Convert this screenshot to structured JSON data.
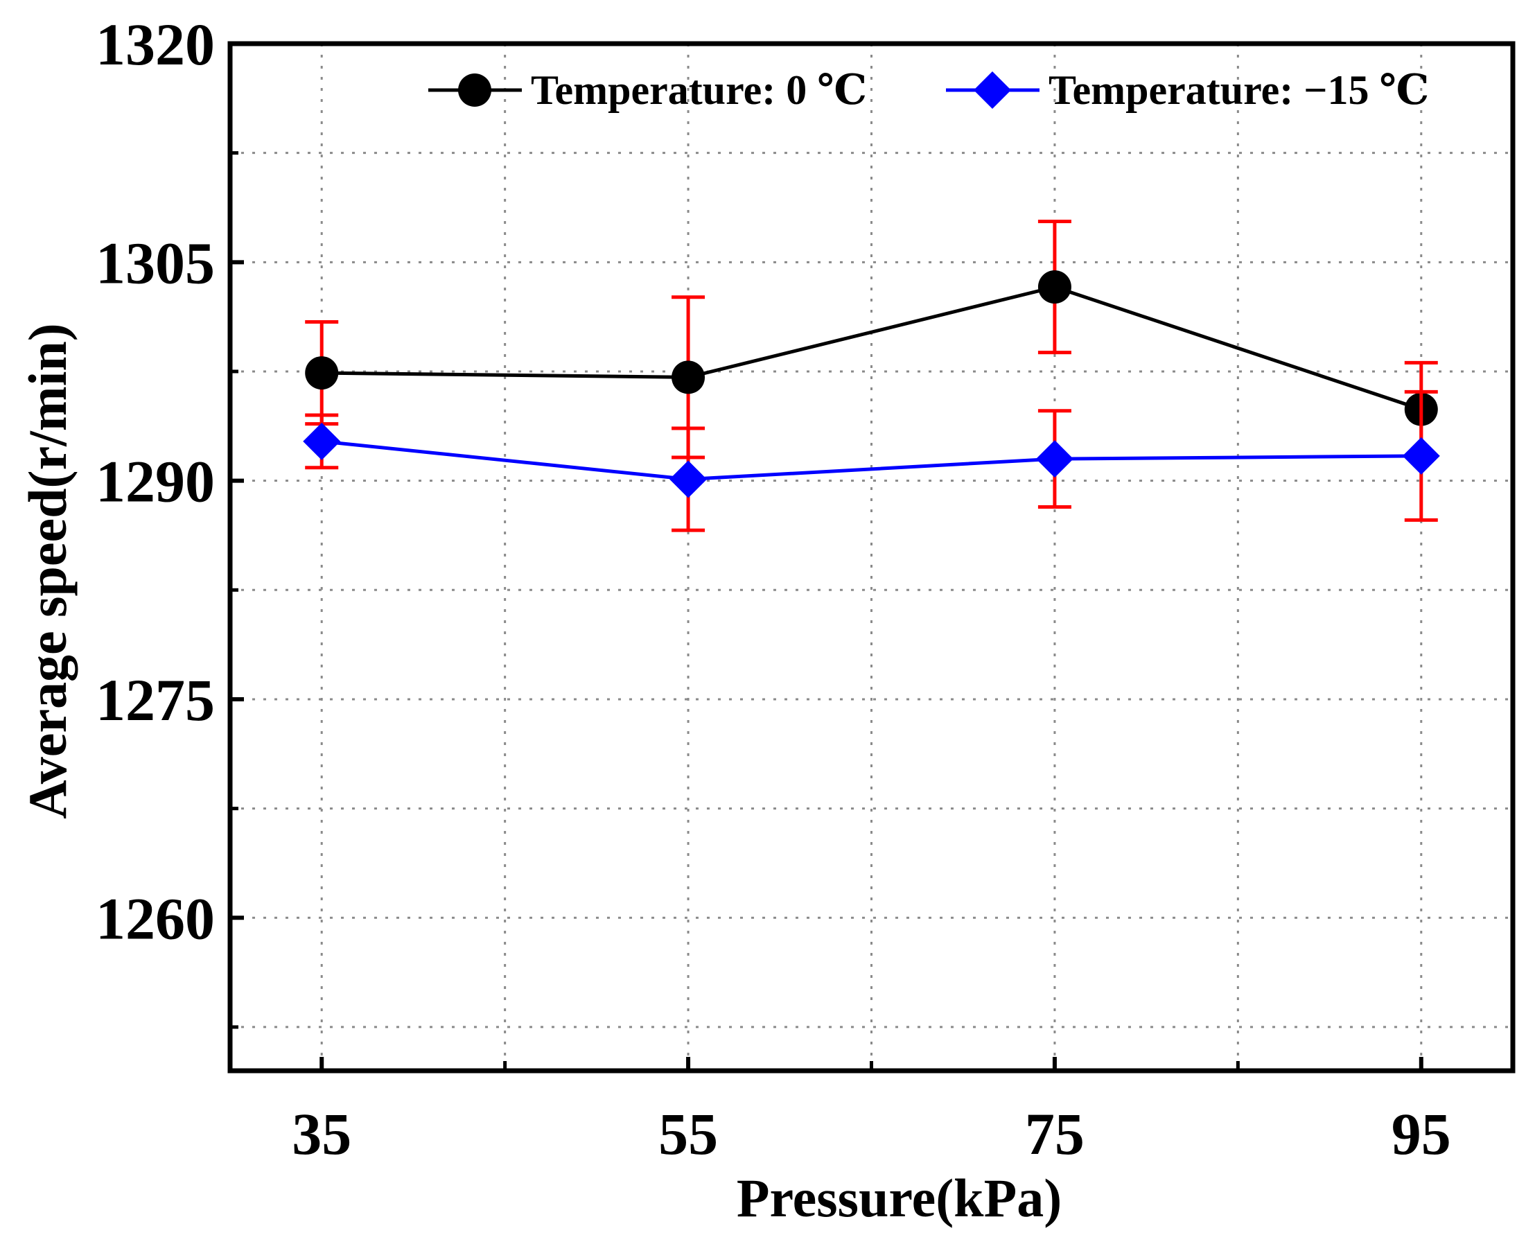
{
  "chart_data": {
    "type": "line",
    "title": "",
    "xlabel": "Pressure(kPa)",
    "ylabel": "Average speed(r/min)",
    "x": [
      35,
      55,
      75,
      95
    ],
    "x_tick_labels": [
      "35",
      "55",
      "75",
      "95"
    ],
    "x_range": [
      30,
      100
    ],
    "x_minor_ticks": [
      45,
      65,
      85
    ],
    "y_ticks": [
      1260,
      1275,
      1290,
      1305,
      1320
    ],
    "y_tick_labels": [
      "1260",
      "1275",
      "1290",
      "1305",
      "1320"
    ],
    "y_minor_ticks": [
      1252.5,
      1267.5,
      1282.5,
      1297.5,
      1312.5
    ],
    "ylim": [
      1249.5,
      1320
    ],
    "grid": true,
    "legend_position": "top-right",
    "series": [
      {
        "name": "Temperature: 0 ℃",
        "color": "#000000",
        "marker": "circle",
        "values": [
          1297.4,
          1297.1,
          1303.3,
          1294.9
        ],
        "errors": [
          3.5,
          5.5,
          4.5,
          3.2
        ]
      },
      {
        "name": "Temperature: −15 ℃",
        "color": "#0000ff",
        "marker": "diamond",
        "values": [
          1292.7,
          1290.1,
          1291.5,
          1291.7
        ],
        "errors": [
          1.8,
          3.5,
          3.3,
          4.4
        ]
      }
    ],
    "error_bar_color": "#ff0000"
  }
}
